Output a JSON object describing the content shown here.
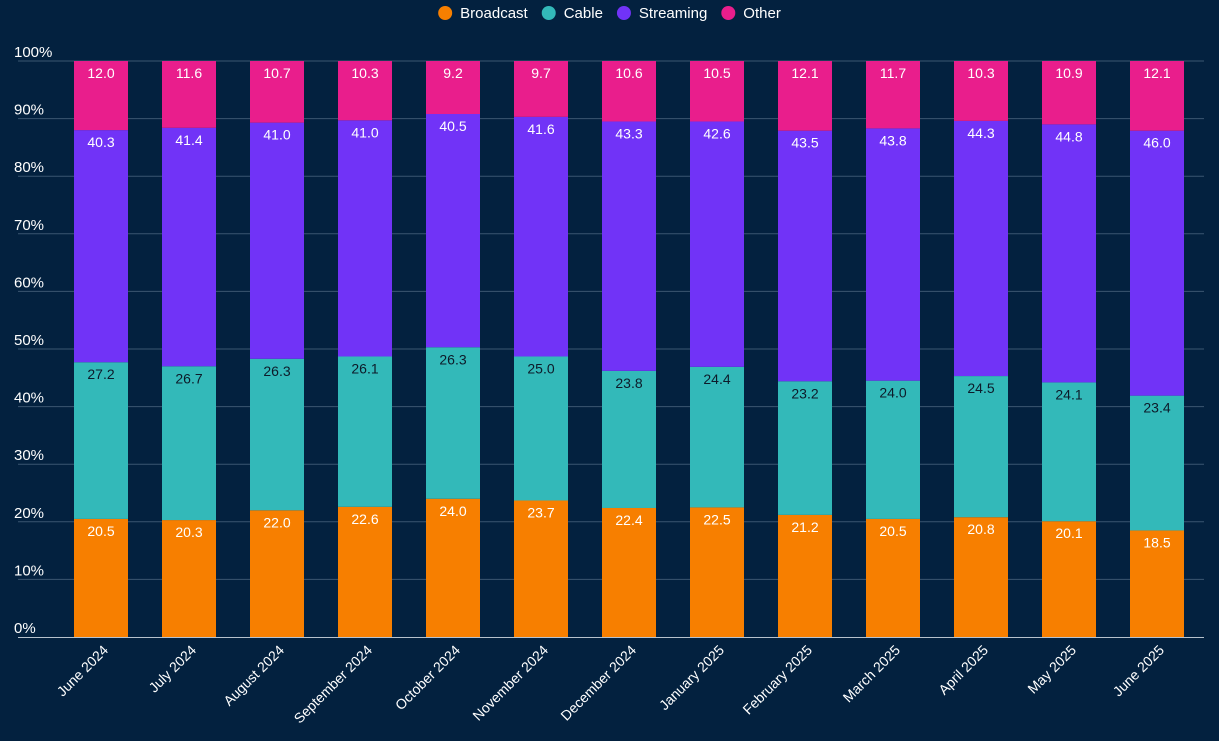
{
  "colors": {
    "background": "#03213f",
    "gridline": "#3b5670",
    "axis_line": "#b7c2cd",
    "Broadcast": "#f77f00",
    "Cable": "#33b9b9",
    "Streaming": "#7133f7",
    "Other": "#e91e8c"
  },
  "chart_data": {
    "type": "stacked-bar",
    "title": "",
    "xlabel": "",
    "ylabel": "",
    "ylim": [
      0,
      100
    ],
    "y_ticks": [
      "0%",
      "10%",
      "20%",
      "30%",
      "40%",
      "50%",
      "60%",
      "70%",
      "80%",
      "90%",
      "100%"
    ],
    "legend_position": "top-center",
    "grid": true,
    "categories": [
      "June 2024",
      "July 2024",
      "August 2024",
      "September 2024",
      "October 2024",
      "November 2024",
      "December 2024",
      "January 2025",
      "February 2025",
      "March 2025",
      "April 2025",
      "May 2025",
      "June 2025"
    ],
    "series": [
      {
        "name": "Broadcast",
        "values": [
          20.5,
          20.3,
          22.0,
          22.6,
          24.0,
          23.7,
          22.4,
          22.5,
          21.2,
          20.5,
          20.8,
          20.1,
          18.5
        ],
        "labels": [
          "20.5",
          "20.3",
          "22.0",
          "22.6",
          "24.0",
          "23.7",
          "22.4",
          "22.5",
          "21.2",
          "20.5",
          "20.8",
          "20.1",
          "18.5"
        ]
      },
      {
        "name": "Cable",
        "values": [
          27.2,
          26.7,
          26.3,
          26.1,
          26.3,
          25.0,
          23.8,
          24.4,
          23.2,
          24.0,
          24.5,
          24.1,
          23.4
        ],
        "labels": [
          "27.2",
          "26.7",
          "26.3",
          "26.1",
          "26.3",
          "25.0",
          "23.8",
          "24.4",
          "23.2",
          "24.0",
          "24.5",
          "24.1",
          "23.4"
        ]
      },
      {
        "name": "Streaming",
        "values": [
          40.3,
          41.4,
          41.0,
          41.0,
          40.5,
          41.6,
          43.3,
          42.6,
          43.5,
          43.8,
          44.3,
          44.8,
          46.0
        ],
        "labels": [
          "40.3",
          "41.4",
          "41.0",
          "41.0",
          "40.5",
          "41.6",
          "43.3",
          "42.6",
          "43.5",
          "43.8",
          "44.3",
          "44.8",
          "46.0"
        ]
      },
      {
        "name": "Other",
        "values": [
          12.0,
          11.6,
          10.7,
          10.3,
          9.2,
          9.7,
          10.6,
          10.5,
          12.1,
          11.7,
          10.3,
          10.9,
          12.1
        ],
        "labels": [
          "12.0",
          "11.6",
          "10.7",
          "10.3",
          "9.2",
          "9.7",
          "10.6",
          "10.5",
          "12.1",
          "11.7",
          "10.3",
          "10.9",
          "12.1"
        ]
      }
    ]
  }
}
